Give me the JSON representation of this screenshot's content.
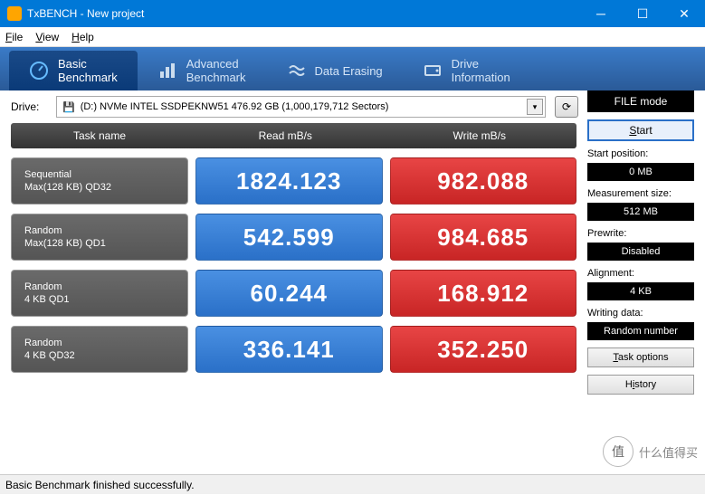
{
  "window": {
    "title": "TxBENCH - New project"
  },
  "menu": {
    "file": "File",
    "view": "View",
    "help": "Help"
  },
  "tabs": {
    "basic": {
      "line1": "Basic",
      "line2": "Benchmark"
    },
    "advanced": {
      "line1": "Advanced",
      "line2": "Benchmark"
    },
    "erasing": {
      "label": "Data Erasing"
    },
    "info": {
      "line1": "Drive",
      "line2": "Information"
    }
  },
  "drive": {
    "label": "Drive:",
    "value": "(D:) NVMe INTEL SSDPEKNW51  476.92 GB (1,000,179,712 Sectors)"
  },
  "headers": {
    "task": "Task name",
    "read": "Read mB/s",
    "write": "Write mB/s"
  },
  "rows": [
    {
      "name1": "Sequential",
      "name2": "Max(128 KB) QD32",
      "read": "1824.123",
      "write": "982.088"
    },
    {
      "name1": "Random",
      "name2": "Max(128 KB) QD1",
      "read": "542.599",
      "write": "984.685"
    },
    {
      "name1": "Random",
      "name2": "4 KB QD1",
      "read": "60.244",
      "write": "168.912"
    },
    {
      "name1": "Random",
      "name2": "4 KB QD32",
      "read": "336.141",
      "write": "352.250"
    }
  ],
  "side": {
    "file_mode": "FILE mode",
    "start": "Start",
    "start_pos_label": "Start position:",
    "start_pos": "0 MB",
    "meas_label": "Measurement size:",
    "meas": "512 MB",
    "prewrite_label": "Prewrite:",
    "prewrite": "Disabled",
    "align_label": "Alignment:",
    "align": "4 KB",
    "wdata_label": "Writing data:",
    "wdata": "Random number",
    "task_opts": "Task options",
    "history": "History"
  },
  "status": "Basic Benchmark finished successfully.",
  "watermark": {
    "char": "值",
    "text": "什么值得买"
  },
  "colors": {
    "titlebar": "#0078d7",
    "tab_grad_top": "#3a7bc8",
    "read_color": "#2a70c8",
    "write_color": "#c82525"
  }
}
